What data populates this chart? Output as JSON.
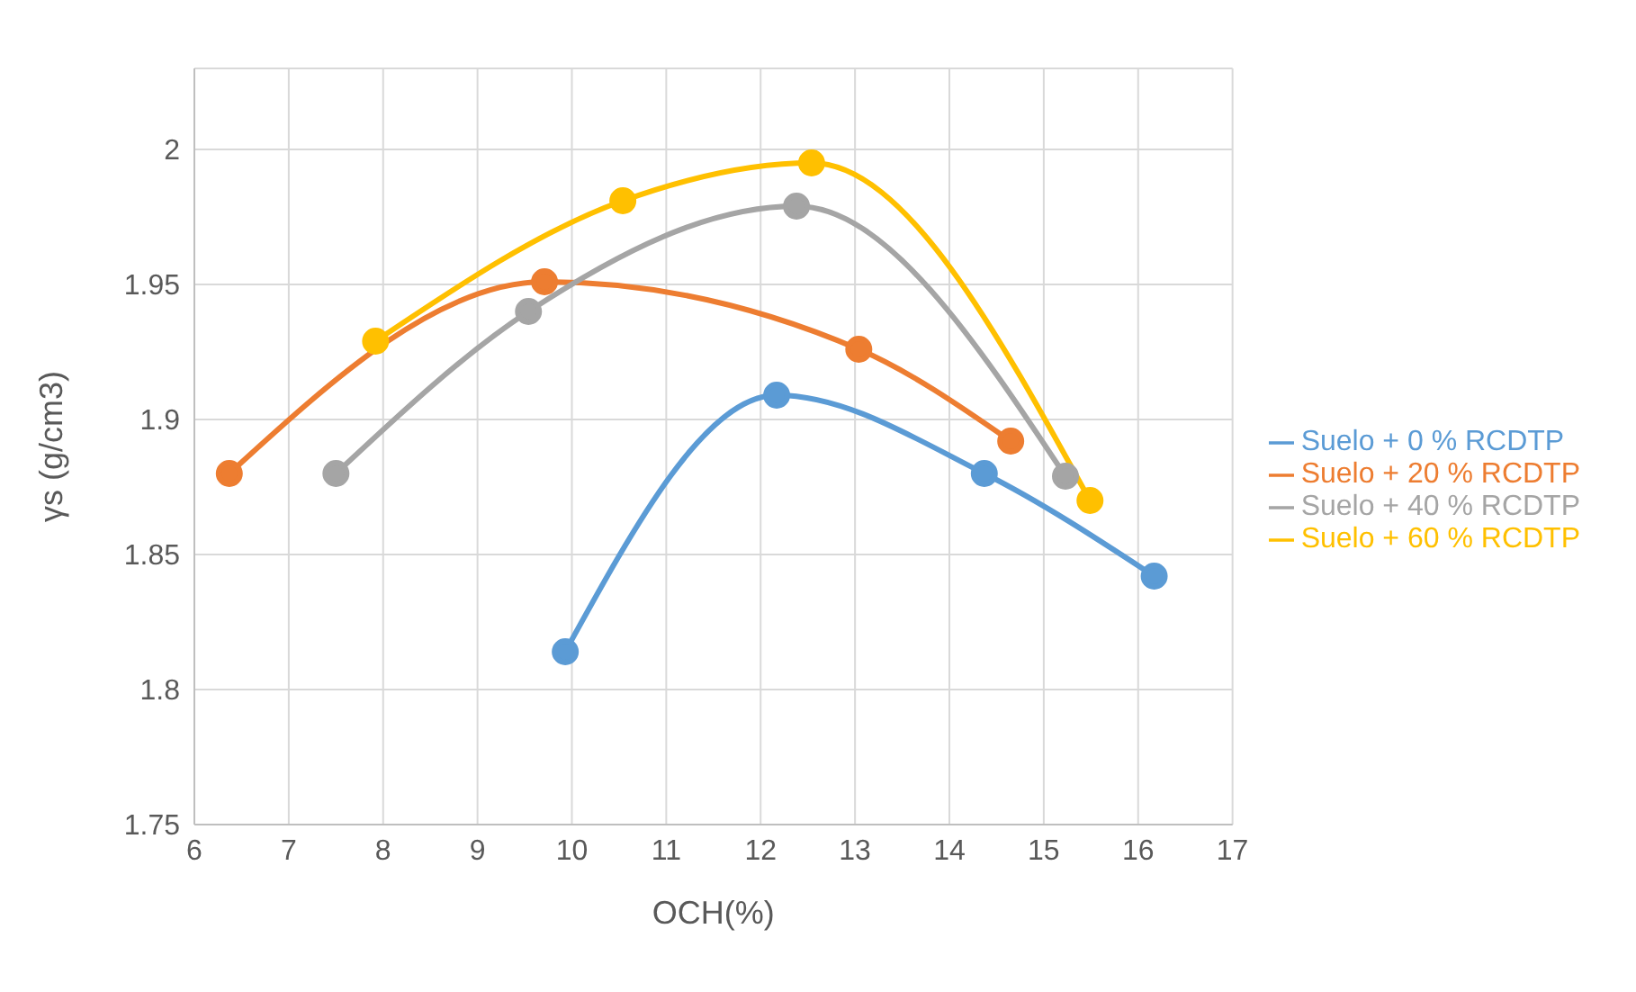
{
  "chart_data": {
    "type": "line",
    "xlabel": "OCH(%)",
    "ylabel": "γs (g/cm3)",
    "xlim": [
      6,
      17
    ],
    "xticks": [
      6,
      7,
      8,
      9,
      10,
      11,
      12,
      13,
      14,
      15,
      16,
      17
    ],
    "ylim": [
      1.75,
      2.03
    ],
    "yticks": [
      1.75,
      1.8,
      1.85,
      1.9,
      1.95,
      2
    ],
    "grid": true,
    "legend": "right",
    "marker": "circle",
    "line_style": "solid",
    "series": [
      {
        "name": "Suelo + 0 % RCDTP",
        "color": "#5b9bd5",
        "x": [
          9.93,
          12.17,
          14.37,
          16.17
        ],
        "values": [
          1.814,
          1.909,
          1.88,
          1.842
        ]
      },
      {
        "name": "Suelo + 20 % RCDTP",
        "color": "#ed7d31",
        "x": [
          6.37,
          9.71,
          13.04,
          14.65
        ],
        "values": [
          1.88,
          1.951,
          1.926,
          1.892
        ]
      },
      {
        "name": "Suelo + 40 % RCDTP",
        "color": "#a5a5a5",
        "x": [
          7.5,
          9.54,
          12.38,
          15.23
        ],
        "values": [
          1.88,
          1.94,
          1.979,
          1.879
        ]
      },
      {
        "name": "Suelo + 60 % RCDTP",
        "color": "#ffc000",
        "x": [
          7.92,
          10.54,
          12.54,
          15.49
        ],
        "values": [
          1.929,
          1.981,
          1.995,
          1.87
        ]
      }
    ]
  }
}
